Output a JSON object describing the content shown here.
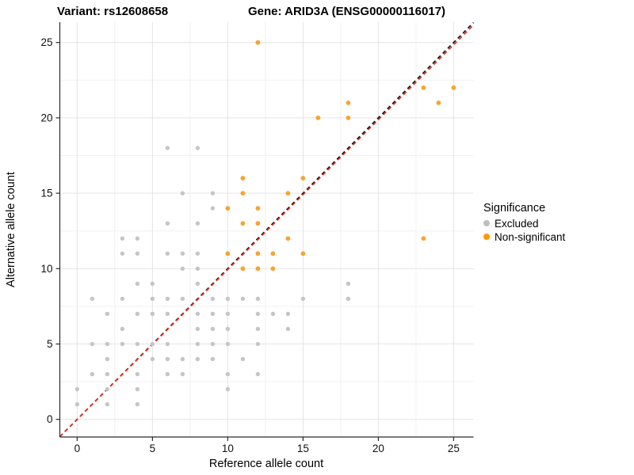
{
  "header": {
    "variant_title": "Variant: rs12608658",
    "gene_title": "Gene: ARID3A (ENSG00000116017)"
  },
  "axes": {
    "x_label": "Reference allele count",
    "y_label": "Alternative allele count",
    "x_ticks": [
      0,
      5,
      10,
      15,
      20,
      25
    ],
    "y_ticks": [
      0,
      5,
      10,
      15,
      20,
      25
    ]
  },
  "legend": {
    "title": "Significance",
    "items": [
      {
        "label": "Excluded",
        "color": "#bebebe"
      },
      {
        "label": "Non-significant",
        "color": "#ff9900"
      }
    ]
  },
  "colors": {
    "background": "#ffffff",
    "major_grid": "#e4e4e4",
    "minor_grid": "#f1f1f1",
    "axis_line": "#2b2b2b",
    "tick_text": "#111111",
    "excluded_point": "#c5c5c5",
    "nonsignificant_point": "#f9a332",
    "identity_line": "#111111",
    "fit_line": "#e42a1d"
  },
  "chart_data": {
    "type": "scatter",
    "title": "Variant: rs12608658 / Gene: ARID3A (ENSG00000116017)",
    "xlabel": "Reference allele count",
    "ylabel": "Alternative allele count",
    "xlim": [
      -1.15,
      26.32
    ],
    "ylim": [
      -1.17,
      26.35
    ],
    "grid": {
      "major": [
        0,
        5,
        10,
        15,
        20,
        25
      ],
      "minor": [
        2.5,
        7.5,
        12.5,
        17.5,
        22.5
      ]
    },
    "legend_position": "right",
    "series": [
      {
        "name": "Excluded",
        "color": "#c5c5c5",
        "radius": 2.7,
        "points": [
          [
            0,
            1
          ],
          [
            2,
            1
          ],
          [
            4,
            1
          ],
          [
            0,
            2
          ],
          [
            2,
            2
          ],
          [
            4,
            2
          ],
          [
            10,
            2
          ],
          [
            1,
            3
          ],
          [
            2,
            3
          ],
          [
            4,
            3
          ],
          [
            6,
            3
          ],
          [
            7,
            3
          ],
          [
            10,
            3
          ],
          [
            12,
            3
          ],
          [
            2,
            4
          ],
          [
            5,
            4
          ],
          [
            6,
            4
          ],
          [
            7,
            4
          ],
          [
            8,
            4
          ],
          [
            9,
            4
          ],
          [
            11,
            4
          ],
          [
            1,
            5
          ],
          [
            2,
            5
          ],
          [
            3,
            5
          ],
          [
            4,
            5
          ],
          [
            5,
            5
          ],
          [
            6,
            5
          ],
          [
            8,
            5
          ],
          [
            9,
            5
          ],
          [
            10,
            5
          ],
          [
            12,
            5
          ],
          [
            3,
            6
          ],
          [
            8,
            6
          ],
          [
            9,
            6
          ],
          [
            10,
            6
          ],
          [
            12,
            6
          ],
          [
            14,
            6
          ],
          [
            2,
            7
          ],
          [
            4,
            7
          ],
          [
            5,
            7
          ],
          [
            6,
            7
          ],
          [
            8,
            7
          ],
          [
            9,
            7
          ],
          [
            10,
            7
          ],
          [
            12,
            7
          ],
          [
            13,
            7
          ],
          [
            14,
            7
          ],
          [
            1,
            8
          ],
          [
            3,
            8
          ],
          [
            5,
            8
          ],
          [
            6,
            8
          ],
          [
            7,
            8
          ],
          [
            9,
            8
          ],
          [
            10,
            8
          ],
          [
            11,
            8
          ],
          [
            12,
            8
          ],
          [
            15,
            8
          ],
          [
            18,
            8
          ],
          [
            4,
            9
          ],
          [
            5,
            9
          ],
          [
            8,
            9
          ],
          [
            18,
            9
          ],
          [
            7,
            10
          ],
          [
            8,
            10
          ],
          [
            3,
            11
          ],
          [
            4,
            11
          ],
          [
            6,
            11
          ],
          [
            7,
            11
          ],
          [
            8,
            11
          ],
          [
            3,
            12
          ],
          [
            4,
            12
          ],
          [
            6,
            13
          ],
          [
            8,
            13
          ],
          [
            9,
            14
          ],
          [
            7,
            15
          ],
          [
            9,
            15
          ],
          [
            6,
            18
          ],
          [
            8,
            18
          ]
        ]
      },
      {
        "name": "Non-significant",
        "color": "#f9a332",
        "radius": 2.9,
        "points": [
          [
            11,
            10
          ],
          [
            12,
            10
          ],
          [
            13,
            10
          ],
          [
            10,
            11
          ],
          [
            12,
            11
          ],
          [
            13,
            11
          ],
          [
            15,
            11
          ],
          [
            14,
            12
          ],
          [
            23,
            12
          ],
          [
            11,
            13
          ],
          [
            12,
            13
          ],
          [
            10,
            14
          ],
          [
            12,
            14
          ],
          [
            11,
            15
          ],
          [
            14,
            15
          ],
          [
            11,
            16
          ],
          [
            15,
            16
          ],
          [
            16,
            20
          ],
          [
            18,
            20
          ],
          [
            18,
            21
          ],
          [
            24,
            21
          ],
          [
            23,
            22
          ],
          [
            25,
            22
          ],
          [
            12,
            25
          ]
        ]
      }
    ],
    "reference_lines": [
      {
        "name": "identity",
        "slope": 1.0,
        "intercept": 0,
        "color": "#111111",
        "style": "dashed"
      },
      {
        "name": "fit",
        "slope": 0.994,
        "intercept": 0,
        "color": "#e42a1d",
        "style": "dashed"
      }
    ]
  }
}
